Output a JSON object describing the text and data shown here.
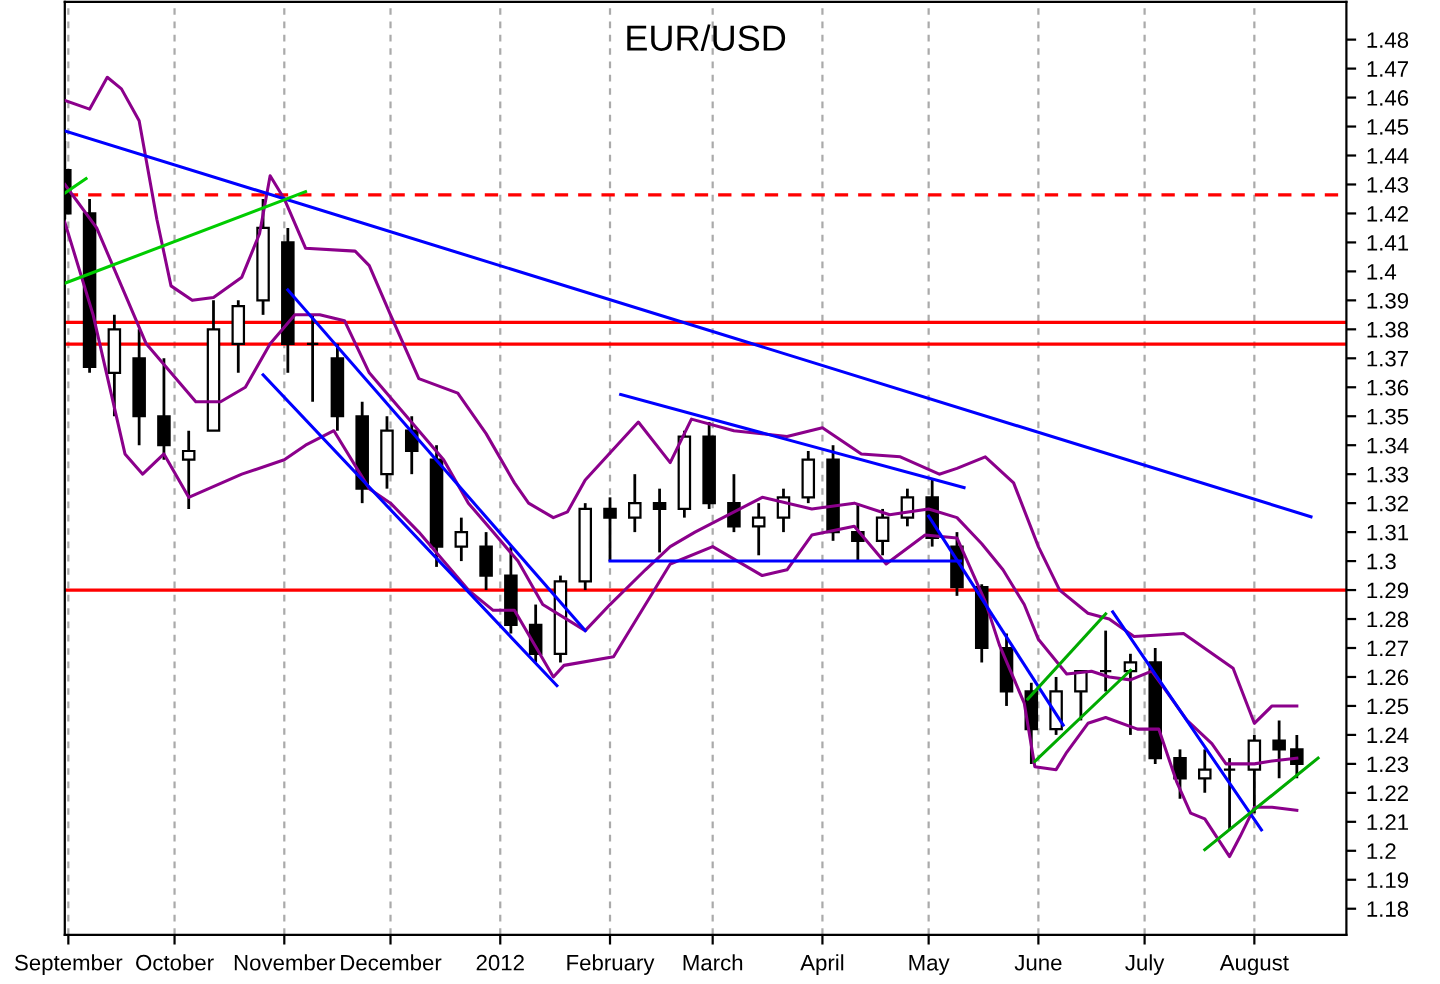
{
  "chart_data": {
    "type": "candlestick",
    "title": "EUR/USD",
    "x": [
      "2011-08-31",
      "2011-09-07",
      "2011-09-14",
      "2011-09-21",
      "2011-09-28",
      "2011-10-05",
      "2011-10-12",
      "2011-10-19",
      "2011-10-26",
      "2011-11-02",
      "2011-11-09",
      "2011-11-16",
      "2011-11-23",
      "2011-11-30",
      "2011-12-07",
      "2011-12-14",
      "2011-12-21",
      "2011-12-28",
      "2012-01-04",
      "2012-01-11",
      "2012-01-18",
      "2012-01-25",
      "2012-02-01",
      "2012-02-08",
      "2012-02-15",
      "2012-02-22",
      "2012-02-29",
      "2012-03-07",
      "2012-03-14",
      "2012-03-21",
      "2012-03-28",
      "2012-04-04",
      "2012-04-11",
      "2012-04-18",
      "2012-04-25",
      "2012-05-02",
      "2012-05-09",
      "2012-05-16",
      "2012-05-23",
      "2012-05-30",
      "2012-06-06",
      "2012-06-13",
      "2012-06-20",
      "2012-06-27",
      "2012-07-04",
      "2012-07-11",
      "2012-07-18",
      "2012-07-25",
      "2012-08-01",
      "2012-08-08",
      "2012-08-13"
    ],
    "ohlc": [
      [
        1.435,
        1.445,
        1.418,
        1.42
      ],
      [
        1.42,
        1.425,
        1.365,
        1.367
      ],
      [
        1.365,
        1.385,
        1.35,
        1.38
      ],
      [
        1.37,
        1.38,
        1.34,
        1.35
      ],
      [
        1.35,
        1.37,
        1.335,
        1.34
      ],
      [
        1.335,
        1.345,
        1.318,
        1.338
      ],
      [
        1.345,
        1.39,
        1.345,
        1.38
      ],
      [
        1.375,
        1.39,
        1.365,
        1.388
      ],
      [
        1.39,
        1.425,
        1.385,
        1.415
      ],
      [
        1.41,
        1.415,
        1.365,
        1.375
      ],
      [
        1.375,
        1.385,
        1.355,
        1.375
      ],
      [
        1.37,
        1.375,
        1.345,
        1.35
      ],
      [
        1.35,
        1.355,
        1.32,
        1.325
      ],
      [
        1.33,
        1.35,
        1.325,
        1.345
      ],
      [
        1.345,
        1.35,
        1.33,
        1.338
      ],
      [
        1.335,
        1.34,
        1.298,
        1.305
      ],
      [
        1.305,
        1.315,
        1.3,
        1.31
      ],
      [
        1.305,
        1.31,
        1.29,
        1.295
      ],
      [
        1.295,
        1.305,
        1.275,
        1.278
      ],
      [
        1.278,
        1.285,
        1.265,
        1.268
      ],
      [
        1.268,
        1.295,
        1.265,
        1.293
      ],
      [
        1.293,
        1.32,
        1.29,
        1.318
      ],
      [
        1.318,
        1.322,
        1.3,
        1.315
      ],
      [
        1.315,
        1.33,
        1.31,
        1.32
      ],
      [
        1.32,
        1.325,
        1.303,
        1.318
      ],
      [
        1.318,
        1.345,
        1.315,
        1.343
      ],
      [
        1.343,
        1.348,
        1.318,
        1.32
      ],
      [
        1.32,
        1.33,
        1.31,
        1.312
      ],
      [
        1.312,
        1.32,
        1.302,
        1.315
      ],
      [
        1.315,
        1.325,
        1.31,
        1.322
      ],
      [
        1.322,
        1.338,
        1.32,
        1.335
      ],
      [
        1.335,
        1.34,
        1.307,
        1.31
      ],
      [
        1.31,
        1.32,
        1.3,
        1.307
      ],
      [
        1.307,
        1.318,
        1.302,
        1.315
      ],
      [
        1.315,
        1.325,
        1.312,
        1.322
      ],
      [
        1.322,
        1.328,
        1.305,
        1.308
      ],
      [
        1.305,
        1.31,
        1.288,
        1.291
      ],
      [
        1.291,
        1.292,
        1.265,
        1.27
      ],
      [
        1.27,
        1.275,
        1.25,
        1.255
      ],
      [
        1.255,
        1.258,
        1.23,
        1.242
      ],
      [
        1.242,
        1.26,
        1.24,
        1.255
      ],
      [
        1.255,
        1.262,
        1.245,
        1.262
      ],
      [
        1.262,
        1.276,
        1.255,
        1.262
      ],
      [
        1.262,
        1.268,
        1.24,
        1.265
      ],
      [
        1.265,
        1.27,
        1.23,
        1.232
      ],
      [
        1.232,
        1.235,
        1.218,
        1.225
      ],
      [
        1.225,
        1.235,
        1.22,
        1.228
      ],
      [
        1.228,
        1.232,
        1.207,
        1.228
      ],
      [
        1.228,
        1.24,
        1.213,
        1.238
      ],
      [
        1.238,
        1.245,
        1.225,
        1.235
      ],
      [
        1.235,
        1.24,
        1.225,
        1.23
      ]
    ],
    "series": [
      {
        "type": "line",
        "color": "#8b008b",
        "x": [
          "2011-08-31",
          "2011-09-07",
          "2011-09-12",
          "2011-09-16",
          "2011-09-21",
          "2011-09-26",
          "2011-09-30",
          "2011-10-06",
          "2011-10-12",
          "2011-10-20",
          "2011-10-25",
          "2011-10-28",
          "2011-11-01",
          "2011-11-07",
          "2011-11-21",
          "2011-11-25",
          "2011-12-01",
          "2011-12-09",
          "2011-12-20",
          "2011-12-28",
          "2012-01-05",
          "2012-01-09",
          "2012-01-16",
          "2012-01-20",
          "2012-01-25",
          "2012-02-09",
          "2012-02-18",
          "2012-02-24",
          "2012-03-07",
          "2012-03-22",
          "2012-04-01",
          "2012-04-12",
          "2012-04-23",
          "2012-05-04",
          "2012-05-09",
          "2012-05-17",
          "2012-05-25",
          "2012-06-01",
          "2012-06-07",
          "2012-06-15",
          "2012-06-21",
          "2012-06-28",
          "2012-07-12",
          "2012-07-26",
          "2012-08-01",
          "2012-08-06",
          "2012-08-13"
        ],
        "values": [
          1.459,
          1.456,
          1.467,
          1.463,
          1.452,
          1.418,
          1.395,
          1.39,
          1.391,
          1.398,
          1.413,
          1.433,
          1.425,
          1.408,
          1.407,
          1.402,
          1.385,
          1.363,
          1.358,
          1.344,
          1.327,
          1.32,
          1.315,
          1.317,
          1.328,
          1.348,
          1.334,
          1.349,
          1.345,
          1.343,
          1.346,
          1.337,
          1.336,
          1.33,
          1.332,
          1.336,
          1.327,
          1.305,
          1.29,
          1.282,
          1.28,
          1.274,
          1.275,
          1.263,
          1.244,
          1.25,
          1.25
        ]
      },
      {
        "type": "line",
        "color": "#8b008b",
        "x": [
          "2011-08-31",
          "2011-09-09",
          "2011-09-16",
          "2011-09-23",
          "2011-09-30",
          "2011-10-07",
          "2011-10-14",
          "2011-10-21",
          "2011-10-28",
          "2011-11-04",
          "2011-11-11",
          "2011-11-18",
          "2011-11-25",
          "2011-12-02",
          "2011-12-09",
          "2011-12-16",
          "2011-12-23",
          "2011-12-30",
          "2012-01-06",
          "2012-01-13",
          "2012-01-25",
          "2012-02-01",
          "2012-02-11",
          "2012-02-18",
          "2012-02-25",
          "2012-03-15",
          "2012-03-29",
          "2012-04-10",
          "2012-04-20",
          "2012-05-01",
          "2012-05-09",
          "2012-05-16",
          "2012-05-22",
          "2012-05-28",
          "2012-06-01",
          "2012-06-09",
          "2012-06-16",
          "2012-06-21",
          "2012-06-27",
          "2012-07-03",
          "2012-07-06",
          "2012-07-13",
          "2012-07-20",
          "2012-07-24",
          "2012-08-01",
          "2012-08-06",
          "2012-08-13"
        ],
        "values": [
          1.43,
          1.415,
          1.395,
          1.375,
          1.365,
          1.355,
          1.355,
          1.36,
          1.375,
          1.385,
          1.385,
          1.383,
          1.365,
          1.355,
          1.345,
          1.335,
          1.32,
          1.31,
          1.3,
          1.285,
          1.276,
          1.285,
          1.297,
          1.305,
          1.31,
          1.322,
          1.318,
          1.32,
          1.316,
          1.318,
          1.315,
          1.306,
          1.297,
          1.285,
          1.273,
          1.261,
          1.262,
          1.26,
          1.259,
          1.262,
          1.257,
          1.245,
          1.237,
          1.23,
          1.23,
          1.231,
          1.232
        ]
      },
      {
        "type": "line",
        "color": "#8b008b",
        "x": [
          "2011-08-31",
          "2011-09-08",
          "2011-09-17",
          "2011-09-22",
          "2011-09-28",
          "2011-10-05",
          "2011-10-20",
          "2011-11-01",
          "2011-11-07",
          "2011-11-15",
          "2011-11-25",
          "2011-12-01",
          "2011-12-09",
          "2011-12-16",
          "2011-12-23",
          "2011-12-30",
          "2012-01-05",
          "2012-01-16",
          "2012-01-19",
          "2012-02-02",
          "2012-02-18",
          "2012-03-01",
          "2012-03-15",
          "2012-03-22",
          "2012-03-29",
          "2012-04-10",
          "2012-04-19",
          "2012-04-30",
          "2012-05-09",
          "2012-05-17",
          "2012-05-21",
          "2012-05-28",
          "2012-05-31",
          "2012-06-06",
          "2012-06-09",
          "2012-06-15",
          "2012-06-20",
          "2012-06-29",
          "2012-07-05",
          "2012-07-10",
          "2012-07-14",
          "2012-07-18",
          "2012-07-25",
          "2012-07-28",
          "2012-08-01",
          "2012-08-06",
          "2012-08-13"
        ],
        "values": [
          1.417,
          1.385,
          1.337,
          1.33,
          1.337,
          1.322,
          1.33,
          1.335,
          1.34,
          1.345,
          1.325,
          1.32,
          1.31,
          1.3,
          1.29,
          1.283,
          1.283,
          1.26,
          1.264,
          1.267,
          1.299,
          1.305,
          1.295,
          1.297,
          1.309,
          1.312,
          1.299,
          1.309,
          1.308,
          1.286,
          1.271,
          1.251,
          1.229,
          1.228,
          1.234,
          1.244,
          1.246,
          1.242,
          1.242,
          1.224,
          1.213,
          1.211,
          1.198,
          1.205,
          1.215,
          1.215,
          1.214
        ]
      },
      {
        "type": "line",
        "color": "#0000ff",
        "x": [
          "2011-08-31",
          "2012-08-17"
        ],
        "values": [
          1.4485,
          1.3153
        ]
      },
      {
        "type": "line",
        "color": "#00cc00",
        "x": [
          "2011-08-31",
          "2011-09-06"
        ],
        "values": [
          1.427,
          1.432
        ]
      },
      {
        "type": "line",
        "color": "#00cc00",
        "x": [
          "2011-08-31",
          "2011-11-07"
        ],
        "values": [
          1.3959,
          1.4275
        ]
      },
      {
        "type": "line",
        "color": "#0000ff",
        "x": [
          "2011-11-02",
          "2012-01-25"
        ],
        "values": [
          1.3936,
          1.276
        ]
      },
      {
        "type": "line",
        "color": "#0000ff",
        "x": [
          "2011-10-26",
          "2012-01-17"
        ],
        "values": [
          1.3643,
          1.257
        ]
      },
      {
        "type": "line",
        "color": "#0000ff",
        "x": [
          "2012-02-04",
          "2012-05-11"
        ],
        "values": [
          1.3575,
          1.3254
        ]
      },
      {
        "type": "line",
        "color": "#0000ff",
        "x": [
          "2012-02-01",
          "2012-05-10"
        ],
        "values": [
          1.3,
          1.3
        ]
      },
      {
        "type": "line",
        "color": "#0000ff",
        "x": [
          "2012-05-01",
          "2012-06-08"
        ],
        "values": [
          1.3155,
          1.2434
        ]
      },
      {
        "type": "line",
        "color": "#00aa00",
        "x": [
          "2012-05-29",
          "2012-06-20"
        ],
        "values": [
          1.2524,
          1.2818
        ]
      },
      {
        "type": "line",
        "color": "#00aa00",
        "x": [
          "2012-05-31",
          "2012-06-27"
        ],
        "values": [
          1.2309,
          1.2623
        ]
      },
      {
        "type": "line",
        "color": "#0000ff",
        "x": [
          "2012-06-22",
          "2012-08-03"
        ],
        "values": [
          1.2825,
          1.2072
        ]
      },
      {
        "type": "line",
        "color": "#00aa00",
        "x": [
          "2012-07-18",
          "2012-08-19"
        ],
        "values": [
          1.2004,
          1.232
        ]
      }
    ],
    "ref_lines": [
      {
        "axis": "y",
        "value": 1.4264,
        "color": "#ff0000",
        "line_style": "dashed"
      },
      {
        "axis": "y",
        "value": 1.3824,
        "color": "#ff0000",
        "line_style": "solid"
      },
      {
        "axis": "y",
        "value": 1.3749,
        "color": "#ff0000",
        "line_style": "solid"
      },
      {
        "axis": "y",
        "value": 1.29,
        "color": "#ff0000",
        "line_style": "solid"
      }
    ],
    "xlim": [
      "2011-08-31",
      "2012-08-27"
    ],
    "xticks": [
      {
        "value": "2011-09-01",
        "label": "September"
      },
      {
        "value": "2011-10-01",
        "label": "October"
      },
      {
        "value": "2011-11-01",
        "label": "November"
      },
      {
        "value": "2011-12-01",
        "label": "December"
      },
      {
        "value": "2012-01-01",
        "label": "2012"
      },
      {
        "value": "2012-02-01",
        "label": "February"
      },
      {
        "value": "2012-03-01",
        "label": "March"
      },
      {
        "value": "2012-04-01",
        "label": "April"
      },
      {
        "value": "2012-05-01",
        "label": "May"
      },
      {
        "value": "2012-06-01",
        "label": "June"
      },
      {
        "value": "2012-07-01",
        "label": "July"
      },
      {
        "value": "2012-08-01",
        "label": "August"
      }
    ],
    "ylim": [
      1.171,
      1.493
    ],
    "yticks": [
      1.18,
      1.19,
      1.2,
      1.21,
      1.22,
      1.23,
      1.24,
      1.25,
      1.26,
      1.27,
      1.28,
      1.29,
      1.3,
      1.31,
      1.32,
      1.33,
      1.34,
      1.35,
      1.36,
      1.37,
      1.38,
      1.39,
      1.4,
      1.41,
      1.42,
      1.43,
      1.44,
      1.45,
      1.46,
      1.47,
      1.48
    ],
    "grid": "x"
  }
}
